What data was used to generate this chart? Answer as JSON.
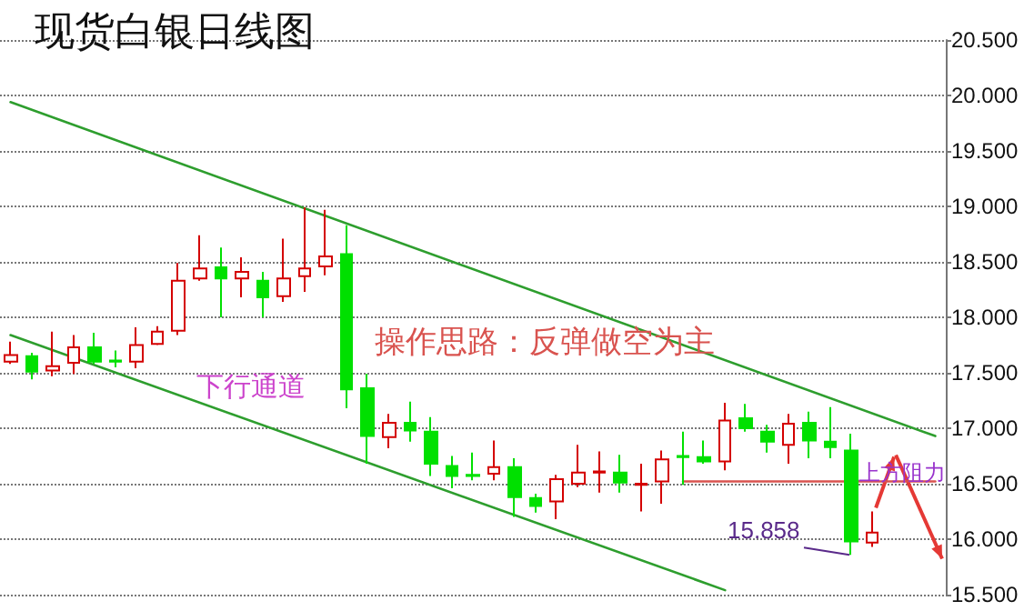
{
  "chart_data": {
    "type": "candlestick",
    "title": "现货白银日线图",
    "categories": [
      null,
      null,
      null,
      null,
      null,
      null,
      null,
      null,
      null,
      null,
      null,
      null,
      null,
      null,
      null,
      null,
      null,
      null,
      null,
      null,
      null,
      null,
      null,
      null,
      null,
      null,
      null,
      null,
      null,
      null,
      null,
      null,
      null,
      null,
      null,
      null,
      null,
      null,
      null,
      null,
      null,
      null,
      null,
      null,
      null
    ],
    "ohlc": [
      [
        17.6,
        17.78,
        17.58,
        17.66
      ],
      [
        17.65,
        17.68,
        17.44,
        17.51
      ],
      [
        17.52,
        17.87,
        17.47,
        17.56
      ],
      [
        17.59,
        17.84,
        17.49,
        17.73
      ],
      [
        17.73,
        17.86,
        17.58,
        17.6
      ],
      [
        17.61,
        17.7,
        17.55,
        17.6
      ],
      [
        17.6,
        17.91,
        17.54,
        17.75
      ],
      [
        17.76,
        17.92,
        17.75,
        17.87
      ],
      [
        17.88,
        18.49,
        17.84,
        18.33
      ],
      [
        18.35,
        18.74,
        18.33,
        18.44
      ],
      [
        18.45,
        18.63,
        18.0,
        18.35
      ],
      [
        18.35,
        18.54,
        18.18,
        18.41
      ],
      [
        18.33,
        18.41,
        18.0,
        18.18
      ],
      [
        18.19,
        18.71,
        18.14,
        18.35
      ],
      [
        18.37,
        18.99,
        18.23,
        18.44
      ],
      [
        18.46,
        18.97,
        18.38,
        18.55
      ],
      [
        18.57,
        18.83,
        17.18,
        17.35
      ],
      [
        17.36,
        17.49,
        16.68,
        16.93
      ],
      [
        16.92,
        17.13,
        16.82,
        17.05
      ],
      [
        17.05,
        17.24,
        16.88,
        16.98
      ],
      [
        16.97,
        17.1,
        16.57,
        16.68
      ],
      [
        16.66,
        16.75,
        16.46,
        16.57
      ],
      [
        16.58,
        16.78,
        16.53,
        16.57
      ],
      [
        16.59,
        16.89,
        16.53,
        16.65
      ],
      [
        16.65,
        16.73,
        16.2,
        16.38
      ],
      [
        16.37,
        16.41,
        16.24,
        16.3
      ],
      [
        16.34,
        16.58,
        16.18,
        16.54
      ],
      [
        16.5,
        16.85,
        16.47,
        16.6
      ],
      [
        16.6,
        16.79,
        16.42,
        16.61
      ],
      [
        16.6,
        16.76,
        16.42,
        16.51
      ],
      [
        16.49,
        16.68,
        16.25,
        16.5
      ],
      [
        16.52,
        16.8,
        16.32,
        16.72
      ],
      [
        16.75,
        16.97,
        16.49,
        16.74
      ],
      [
        16.74,
        16.89,
        16.68,
        16.7
      ],
      [
        16.7,
        17.23,
        16.62,
        17.07
      ],
      [
        17.09,
        17.22,
        16.97,
        17.0
      ],
      [
        16.97,
        17.03,
        16.78,
        16.88
      ],
      [
        16.85,
        17.13,
        16.68,
        17.04
      ],
      [
        17.05,
        17.15,
        16.73,
        16.89
      ],
      [
        16.88,
        17.19,
        16.73,
        16.83
      ],
      [
        16.8,
        16.95,
        15.858,
        15.98
      ],
      [
        15.97,
        16.25,
        15.93,
        16.06
      ],
      null,
      null,
      null
    ],
    "colors": [
      "#d40000",
      "#00e000",
      "#d40000",
      "#d40000",
      "#00e000",
      "#00e000",
      "#d40000",
      "#d40000",
      "#d40000",
      "#d40000",
      "#00e000",
      "#d40000",
      "#00e000",
      "#d40000",
      "#d40000",
      "#d40000",
      "#00e000",
      "#00e000",
      "#d40000",
      "#00e000",
      "#00e000",
      "#00e000",
      "#00e000",
      "#d40000",
      "#00e000",
      "#00e000",
      "#d40000",
      "#d40000",
      "#d40000",
      "#00e000",
      "#d40000",
      "#d40000",
      "#00e000",
      "#00e000",
      "#d40000",
      "#00e000",
      "#00e000",
      "#d40000",
      "#00e000",
      "#00e000",
      "#00e000",
      "#d40000",
      null,
      null,
      null
    ],
    "series": [
      {
        "type": "line",
        "color": "#2e9e2e",
        "values": [
          19.94,
          null,
          null,
          null,
          null,
          null,
          null,
          null,
          null,
          null,
          null,
          null,
          null,
          null,
          null,
          null,
          null,
          null,
          null,
          null,
          null,
          null,
          null,
          null,
          null,
          null,
          null,
          null,
          null,
          null,
          null,
          null,
          null,
          null,
          null,
          null,
          null,
          null,
          null,
          null,
          null,
          null,
          null,
          null,
          16.93
        ]
      },
      {
        "type": "line",
        "color": "#2e9e2e",
        "values": [
          17.84,
          null,
          null,
          null,
          null,
          null,
          null,
          null,
          null,
          null,
          null,
          null,
          null,
          null,
          null,
          null,
          null,
          null,
          null,
          null,
          null,
          null,
          null,
          null,
          null,
          null,
          null,
          null,
          null,
          null,
          null,
          null,
          null,
          null,
          15.54,
          null,
          null,
          null,
          null,
          null,
          null,
          null,
          null,
          null,
          null
        ]
      },
      {
        "type": "line",
        "color": "#d9534f",
        "values": [
          null,
          null,
          null,
          null,
          null,
          null,
          null,
          null,
          null,
          null,
          null,
          null,
          null,
          null,
          null,
          null,
          null,
          null,
          null,
          null,
          null,
          null,
          null,
          null,
          null,
          null,
          null,
          null,
          null,
          null,
          null,
          null,
          16.52,
          null,
          null,
          null,
          null,
          null,
          null,
          null,
          null,
          null,
          null,
          null,
          16.52
        ]
      }
    ],
    "marker": "none",
    "line_style": "solid",
    "ylim": [
      15.5,
      20.5
    ],
    "yticks": [
      {
        "value": 15.5,
        "label": "15.500"
      },
      {
        "value": 16,
        "label": "16.000"
      },
      {
        "value": 16.5,
        "label": "16.500"
      },
      {
        "value": 17,
        "label": "17.000"
      },
      {
        "value": 17.5,
        "label": "17.500"
      },
      {
        "value": 18,
        "label": "18.000"
      },
      {
        "value": 18.5,
        "label": "18.500"
      },
      {
        "value": 19,
        "label": "19.000"
      },
      {
        "value": 19.5,
        "label": "19.500"
      },
      {
        "value": 20,
        "label": "20.000"
      },
      {
        "value": 20.5,
        "label": "20.500"
      }
    ],
    "grid": "y",
    "tick_labels": "y",
    "annotations": [
      "下行通道",
      "操作思路：反弹做空为主",
      "上方阻力",
      "15.858"
    ]
  }
}
